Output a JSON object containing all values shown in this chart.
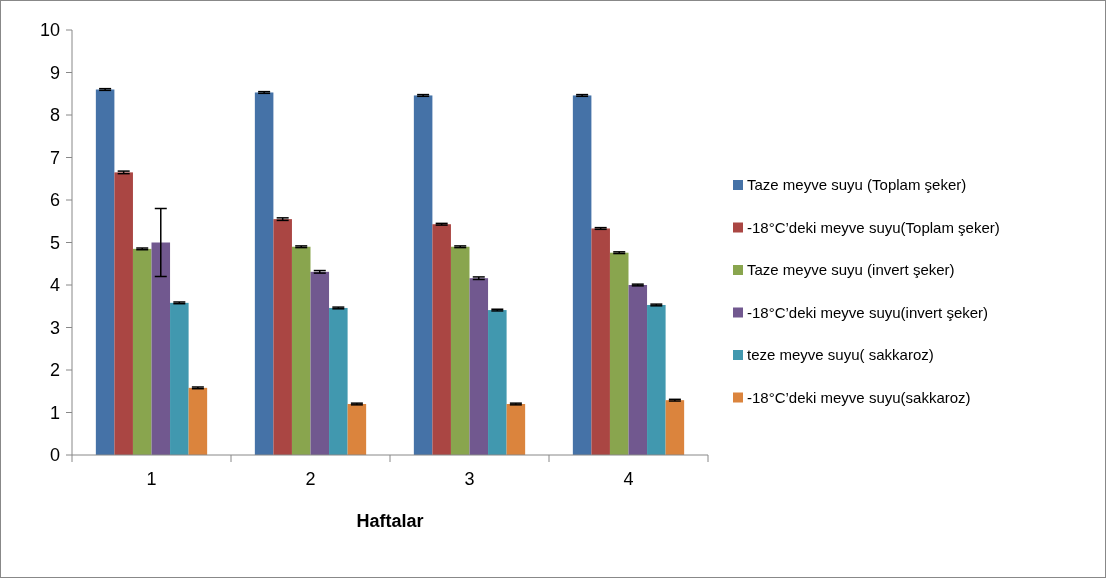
{
  "chart_data": {
    "type": "bar",
    "xlabel": "Haftalar",
    "categories": [
      "1",
      "2",
      "3",
      "4"
    ],
    "ylim": [
      0,
      10
    ],
    "yticks": [
      0,
      1,
      2,
      3,
      4,
      5,
      6,
      7,
      8,
      9,
      10
    ],
    "grid": false,
    "legend": "right",
    "series": [
      {
        "name": "Taze meyve suyu (Toplam şeker)",
        "color": "#4572a7",
        "values": [
          8.6,
          8.53,
          8.46,
          8.46
        ],
        "errors": [
          0.02,
          0.02,
          0.02,
          0.02
        ]
      },
      {
        "name": "-18°C’deki meyve suyu(Toplam şeker)",
        "color": "#aa4643",
        "values": [
          6.65,
          5.55,
          5.43,
          5.33
        ],
        "errors": [
          0.03,
          0.03,
          0.02,
          0.02
        ]
      },
      {
        "name": "Taze meyve suyu (invert şeker)",
        "color": "#89a54e",
        "values": [
          4.85,
          4.9,
          4.9,
          4.76
        ],
        "errors": [
          0.02,
          0.02,
          0.02,
          0.02
        ]
      },
      {
        "name": "-18°C’deki meyve suyu(invert şeker)",
        "color": "#71588f",
        "values": [
          5.0,
          4.31,
          4.16,
          4.0
        ],
        "errors": [
          0.8,
          0.03,
          0.03,
          0.02
        ]
      },
      {
        "name": "teze meyve suyu( sakkaroz)",
        "color": "#4198af",
        "values": [
          3.58,
          3.46,
          3.41,
          3.53
        ],
        "errors": [
          0.02,
          0.02,
          0.02,
          0.02
        ]
      },
      {
        "name": "-18°C’deki meyve suyu(sakkaroz)",
        "color": "#db843d",
        "values": [
          1.58,
          1.2,
          1.2,
          1.29
        ],
        "errors": [
          0.02,
          0.02,
          0.02,
          0.02
        ]
      }
    ]
  }
}
